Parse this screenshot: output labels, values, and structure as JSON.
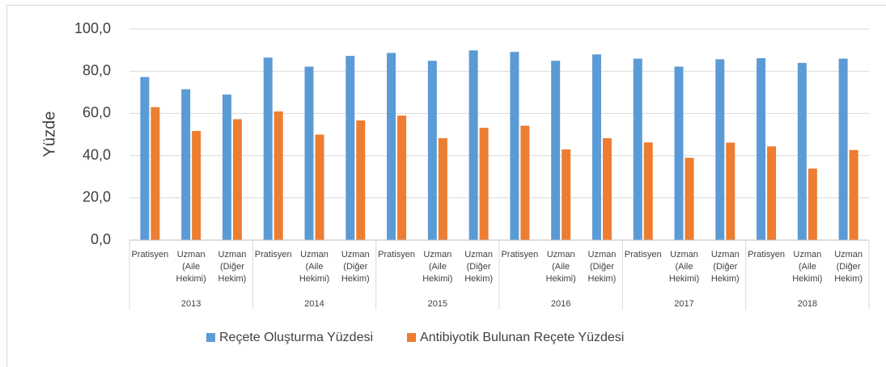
{
  "chart_data": {
    "type": "bar",
    "y_label": "Yüzde",
    "groups": [
      "2013",
      "2014",
      "2015",
      "2016",
      "2017",
      "2018"
    ],
    "categories": [
      "Pratisyen",
      "Uzman (Aile Hekimi)",
      "Uzman (Diğer Hekim)",
      "Pratisyen",
      "Uzman (Aile Hekimi)",
      "Uzman (Diğer Hekim)",
      "Pratisyen",
      "Uzman (Aile Hekimi)",
      "Uzman (Diğer Hekim)",
      "Pratisyen",
      "Uzman (Aile Hekimi)",
      "Uzman (Diğer Hekim)",
      "Pratisyen",
      "Uzman (Aile Hekimi)",
      "Uzman (Diğer Hekim)",
      "Pratisyen",
      "Uzman (Aile Hekimi)",
      "Uzman (Diğer Hekim)"
    ],
    "series": [
      {
        "name": "Reçete Oluşturma Yüzdesi",
        "color": "#5b9bd5",
        "values": [
          77.3,
          71.5,
          69,
          86.5,
          82.2,
          87.3,
          88.7,
          85,
          89.9,
          89.2,
          85,
          88,
          86,
          82.2,
          85.7,
          86.2,
          84,
          86
        ]
      },
      {
        "name": "Antibiyotik Bulunan Reçete Yüzdesi",
        "color": "#ed7d31",
        "values": [
          63,
          51.7,
          57.3,
          61,
          50,
          56.7,
          59,
          48.3,
          53.2,
          54.2,
          43,
          48.3,
          46.3,
          39,
          46.2,
          44.4,
          33.9,
          42.7
        ]
      }
    ],
    "ylim": [
      0,
      100
    ],
    "yticks": [
      {
        "value": 0,
        "label": "0,0"
      },
      {
        "value": 20,
        "label": "20,0"
      },
      {
        "value": 40,
        "label": "40,0"
      },
      {
        "value": 60,
        "label": "60,0"
      },
      {
        "value": 80,
        "label": "80,0"
      },
      {
        "value": 100,
        "label": "100,0"
      }
    ],
    "grid": true,
    "legend": "bottom"
  }
}
